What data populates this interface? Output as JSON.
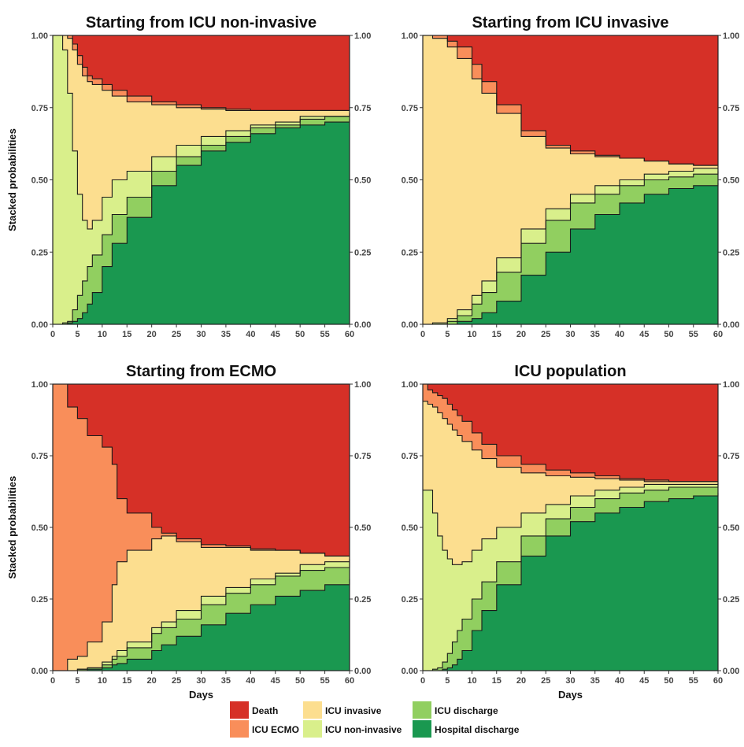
{
  "legend": [
    {
      "name": "Death",
      "color": "#D63027"
    },
    {
      "name": "ICU ECMO",
      "color": "#F98E5A"
    },
    {
      "name": "ICU invasive",
      "color": "#FCDE8F"
    },
    {
      "name": "ICU non-invasive",
      "color": "#D9EF8B"
    },
    {
      "name": "ICU discharge",
      "color": "#91CF60"
    },
    {
      "name": "Hospital discharge",
      "color": "#1A9850"
    }
  ],
  "chart_data": [
    {
      "type": "area",
      "title": "Starting from ICU non-invasive",
      "xlabel": "",
      "ylabel": "Stacked probabilities",
      "xlim": [
        0,
        60
      ],
      "ylim": [
        0,
        1
      ],
      "x_ticks": [
        0,
        5,
        10,
        15,
        20,
        25,
        30,
        35,
        40,
        45,
        50,
        55,
        60
      ],
      "y_ticks": [
        "0.00",
        "0.25",
        "0.50",
        "0.75",
        "1.00"
      ],
      "x": [
        0,
        1,
        2,
        3,
        4,
        5,
        6,
        7,
        8,
        10,
        12,
        15,
        20,
        25,
        30,
        35,
        40,
        45,
        50,
        55,
        60
      ],
      "series": [
        {
          "name": "Hospital discharge",
          "values": [
            0,
            0,
            0,
            0.005,
            0.01,
            0.02,
            0.04,
            0.07,
            0.11,
            0.2,
            0.28,
            0.37,
            0.48,
            0.55,
            0.6,
            0.63,
            0.66,
            0.68,
            0.69,
            0.7,
            0.71
          ]
        },
        {
          "name": "ICU discharge",
          "values": [
            0,
            0,
            0.005,
            0.01,
            0.05,
            0.1,
            0.15,
            0.2,
            0.24,
            0.31,
            0.38,
            0.44,
            0.53,
            0.58,
            0.62,
            0.65,
            0.68,
            0.69,
            0.71,
            0.72,
            0.73
          ]
        },
        {
          "name": "ICU non-invasive",
          "values": [
            1,
            1,
            0.95,
            0.8,
            0.6,
            0.45,
            0.36,
            0.33,
            0.36,
            0.44,
            0.5,
            0.53,
            0.58,
            0.62,
            0.65,
            0.67,
            0.69,
            0.7,
            0.72,
            0.72,
            0.73
          ]
        },
        {
          "name": "ICU invasive",
          "values": [
            1,
            1,
            1,
            0.99,
            0.95,
            0.9,
            0.86,
            0.84,
            0.83,
            0.81,
            0.79,
            0.77,
            0.76,
            0.75,
            0.745,
            0.74,
            0.74,
            0.74,
            0.74,
            0.74,
            0.74
          ]
        },
        {
          "name": "ICU ECMO",
          "values": [
            1,
            1,
            1,
            1,
            0.97,
            0.93,
            0.89,
            0.86,
            0.85,
            0.83,
            0.81,
            0.79,
            0.77,
            0.76,
            0.75,
            0.745,
            0.74,
            0.74,
            0.74,
            0.74,
            0.74
          ]
        },
        {
          "name": "Death",
          "values": [
            1,
            1,
            1,
            1,
            1,
            1,
            1,
            1,
            1,
            1,
            1,
            1,
            1,
            1,
            1,
            1,
            1,
            1,
            1,
            1,
            1
          ]
        }
      ]
    },
    {
      "type": "area",
      "title": "Starting from ICU invasive",
      "xlabel": "",
      "ylabel": "",
      "xlim": [
        0,
        60
      ],
      "ylim": [
        0,
        1
      ],
      "x_ticks": [
        0,
        5,
        10,
        15,
        20,
        25,
        30,
        35,
        40,
        45,
        50,
        55,
        60
      ],
      "y_ticks": [
        "0.00",
        "0.25",
        "0.50",
        "0.75",
        "1.00"
      ],
      "x": [
        0,
        2,
        5,
        7,
        10,
        12,
        15,
        20,
        25,
        30,
        35,
        40,
        45,
        50,
        55,
        60
      ],
      "series": [
        {
          "name": "Hospital discharge",
          "values": [
            0,
            0,
            0,
            0.01,
            0.02,
            0.04,
            0.08,
            0.17,
            0.25,
            0.33,
            0.38,
            0.42,
            0.45,
            0.47,
            0.48,
            0.49
          ]
        },
        {
          "name": "ICU discharge",
          "values": [
            0,
            0,
            0.01,
            0.03,
            0.07,
            0.11,
            0.18,
            0.28,
            0.36,
            0.42,
            0.45,
            0.48,
            0.5,
            0.51,
            0.52,
            0.53
          ]
        },
        {
          "name": "ICU non-invasive",
          "values": [
            0,
            0.005,
            0.02,
            0.05,
            0.1,
            0.15,
            0.23,
            0.33,
            0.4,
            0.45,
            0.48,
            0.5,
            0.52,
            0.53,
            0.54,
            0.54
          ]
        },
        {
          "name": "ICU invasive",
          "values": [
            1,
            0.99,
            0.96,
            0.92,
            0.85,
            0.8,
            0.73,
            0.65,
            0.61,
            0.59,
            0.58,
            0.575,
            0.565,
            0.555,
            0.55,
            0.55
          ]
        },
        {
          "name": "ICU ECMO",
          "values": [
            1,
            1,
            0.98,
            0.96,
            0.9,
            0.84,
            0.76,
            0.67,
            0.62,
            0.6,
            0.585,
            0.575,
            0.565,
            0.555,
            0.55,
            0.55
          ]
        },
        {
          "name": "Death",
          "values": [
            1,
            1,
            1,
            1,
            1,
            1,
            1,
            1,
            1,
            1,
            1,
            1,
            1,
            1,
            1,
            1
          ]
        }
      ]
    },
    {
      "type": "area",
      "title": "Starting from ECMO",
      "xlabel": "Days",
      "ylabel": "Stacked probabilities",
      "xlim": [
        0,
        60
      ],
      "ylim": [
        0,
        1
      ],
      "x_ticks": [
        0,
        5,
        10,
        15,
        20,
        25,
        30,
        35,
        40,
        45,
        50,
        55,
        60
      ],
      "y_ticks": [
        "0.00",
        "0.25",
        "0.50",
        "0.75",
        "1.00"
      ],
      "x": [
        0,
        2,
        3,
        5,
        7,
        10,
        12,
        13,
        15,
        20,
        22,
        25,
        30,
        35,
        40,
        45,
        50,
        55,
        60
      ],
      "series": [
        {
          "name": "Hospital discharge",
          "values": [
            0,
            0,
            0,
            0,
            0.005,
            0.01,
            0.02,
            0.025,
            0.04,
            0.07,
            0.09,
            0.12,
            0.16,
            0.2,
            0.23,
            0.26,
            0.28,
            0.3,
            0.32
          ]
        },
        {
          "name": "ICU discharge",
          "values": [
            0,
            0,
            0,
            0.005,
            0.01,
            0.02,
            0.04,
            0.05,
            0.08,
            0.13,
            0.15,
            0.18,
            0.23,
            0.27,
            0.3,
            0.33,
            0.35,
            0.36,
            0.38
          ]
        },
        {
          "name": "ICU non-invasive",
          "values": [
            0,
            0,
            0,
            0.005,
            0.01,
            0.03,
            0.05,
            0.07,
            0.1,
            0.15,
            0.17,
            0.21,
            0.26,
            0.29,
            0.32,
            0.34,
            0.37,
            0.38,
            0.39
          ]
        },
        {
          "name": "ICU invasive",
          "values": [
            0,
            0,
            0.04,
            0.05,
            0.1,
            0.17,
            0.3,
            0.38,
            0.42,
            0.46,
            0.47,
            0.45,
            0.43,
            0.43,
            0.42,
            0.42,
            0.41,
            0.4,
            0.4
          ]
        },
        {
          "name": "ICU ECMO",
          "values": [
            1,
            1,
            0.92,
            0.88,
            0.82,
            0.78,
            0.72,
            0.6,
            0.55,
            0.5,
            0.48,
            0.46,
            0.44,
            0.435,
            0.425,
            0.42,
            0.41,
            0.4,
            0.4
          ]
        },
        {
          "name": "Death",
          "values": [
            1,
            1,
            1,
            1,
            1,
            1,
            1,
            1,
            1,
            1,
            1,
            1,
            1,
            1,
            1,
            1,
            1,
            1,
            1
          ]
        }
      ]
    },
    {
      "type": "area",
      "title": "ICU population",
      "xlabel": "Days",
      "ylabel": "",
      "xlim": [
        0,
        60
      ],
      "ylim": [
        0,
        1
      ],
      "x_ticks": [
        0,
        5,
        10,
        15,
        20,
        25,
        30,
        35,
        40,
        45,
        50,
        55,
        60
      ],
      "y_ticks": [
        "0.00",
        "0.25",
        "0.50",
        "0.75",
        "1.00"
      ],
      "x": [
        0,
        1,
        2,
        3,
        4,
        5,
        6,
        7,
        8,
        10,
        12,
        15,
        20,
        25,
        30,
        35,
        40,
        45,
        50,
        55,
        60
      ],
      "series": [
        {
          "name": "Hospital discharge",
          "values": [
            0,
            0,
            0,
            0,
            0.005,
            0.01,
            0.02,
            0.04,
            0.07,
            0.14,
            0.21,
            0.3,
            0.4,
            0.47,
            0.52,
            0.55,
            0.57,
            0.59,
            0.6,
            0.61,
            0.62
          ]
        },
        {
          "name": "ICU discharge",
          "values": [
            0,
            0,
            0.005,
            0.01,
            0.03,
            0.06,
            0.1,
            0.14,
            0.18,
            0.25,
            0.31,
            0.38,
            0.47,
            0.53,
            0.57,
            0.6,
            0.62,
            0.63,
            0.64,
            0.64,
            0.65
          ]
        },
        {
          "name": "ICU non-invasive",
          "values": [
            0.63,
            0.63,
            0.55,
            0.47,
            0.42,
            0.39,
            0.37,
            0.37,
            0.38,
            0.42,
            0.46,
            0.5,
            0.55,
            0.58,
            0.61,
            0.63,
            0.64,
            0.65,
            0.65,
            0.65,
            0.655
          ]
        },
        {
          "name": "ICU invasive",
          "values": [
            0.94,
            0.93,
            0.92,
            0.9,
            0.88,
            0.86,
            0.84,
            0.82,
            0.8,
            0.77,
            0.74,
            0.71,
            0.69,
            0.68,
            0.675,
            0.67,
            0.665,
            0.66,
            0.66,
            0.66,
            0.66
          ]
        },
        {
          "name": "ICU ECMO",
          "values": [
            1,
            0.98,
            0.97,
            0.96,
            0.95,
            0.93,
            0.91,
            0.89,
            0.87,
            0.83,
            0.79,
            0.75,
            0.72,
            0.7,
            0.69,
            0.68,
            0.67,
            0.665,
            0.66,
            0.66,
            0.66
          ]
        },
        {
          "name": "Death",
          "values": [
            1,
            1,
            1,
            1,
            1,
            1,
            1,
            1,
            1,
            1,
            1,
            1,
            1,
            1,
            1,
            1,
            1,
            1,
            1,
            1,
            1
          ]
        }
      ]
    }
  ]
}
